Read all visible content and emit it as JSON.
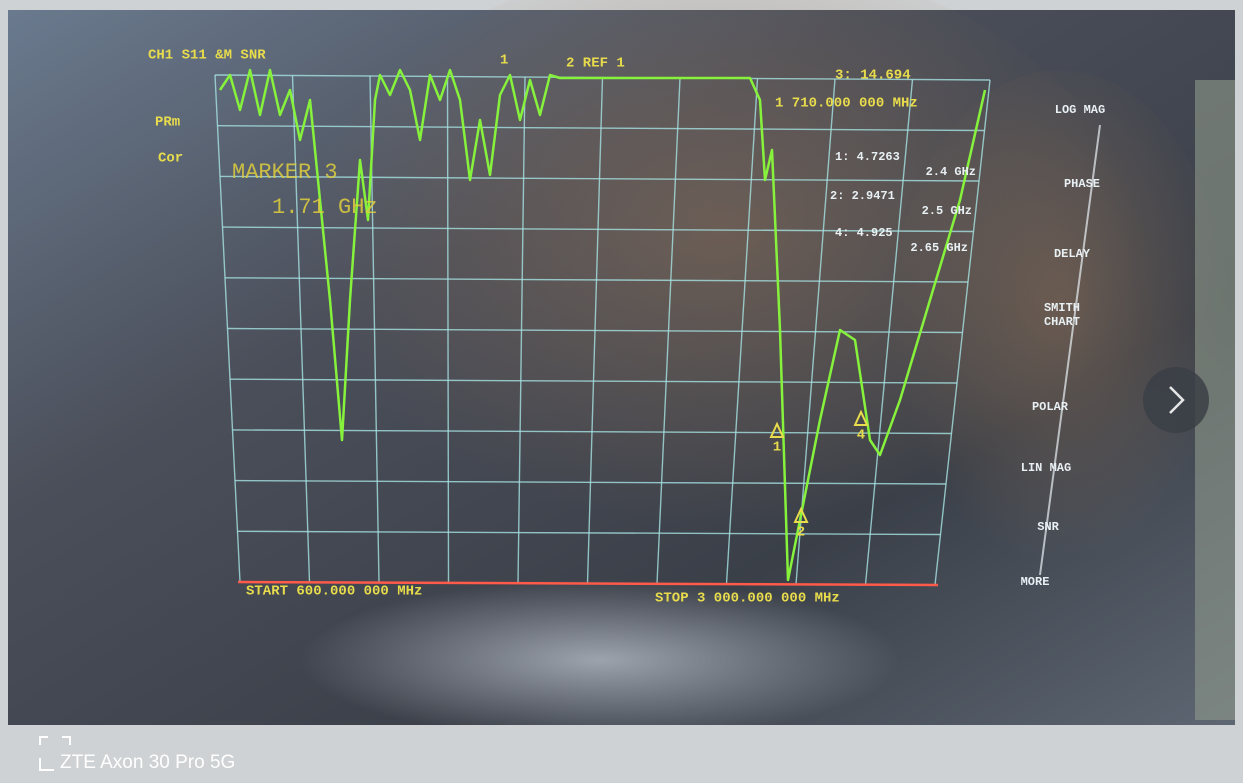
{
  "screen": {
    "header": "CH1 S11 &M SNR",
    "left_labels": [
      "PRm",
      "Cor"
    ],
    "top_markers": [
      "1",
      "2 REF 1"
    ],
    "active_marker": {
      "readout": "3: 14.694",
      "frequency": "1 710.000 000 MHz"
    },
    "marker_title": "MARKER 3",
    "marker_value": "1.71 GHz",
    "marker_list": [
      {
        "value": "1: 4.7263",
        "frequency": "2.4 GHz"
      },
      {
        "value": "2: 2.9471",
        "frequency": "2.5 GHz"
      },
      {
        "value": "4: 4.925",
        "frequency": "2.65 GHz"
      }
    ],
    "trace_markers": [
      "1",
      "2",
      "4"
    ],
    "start": "START 600.000 000 MHz",
    "stop": "STOP 3 000.000 000 MHz",
    "softkeys": [
      "LOG MAG",
      "PHASE",
      "DELAY",
      "SMITH CHART",
      "POLAR",
      "LIN MAG",
      "SNR",
      "MORE"
    ],
    "watermark": "ZTE Axon 30 Pro 5G"
  }
}
